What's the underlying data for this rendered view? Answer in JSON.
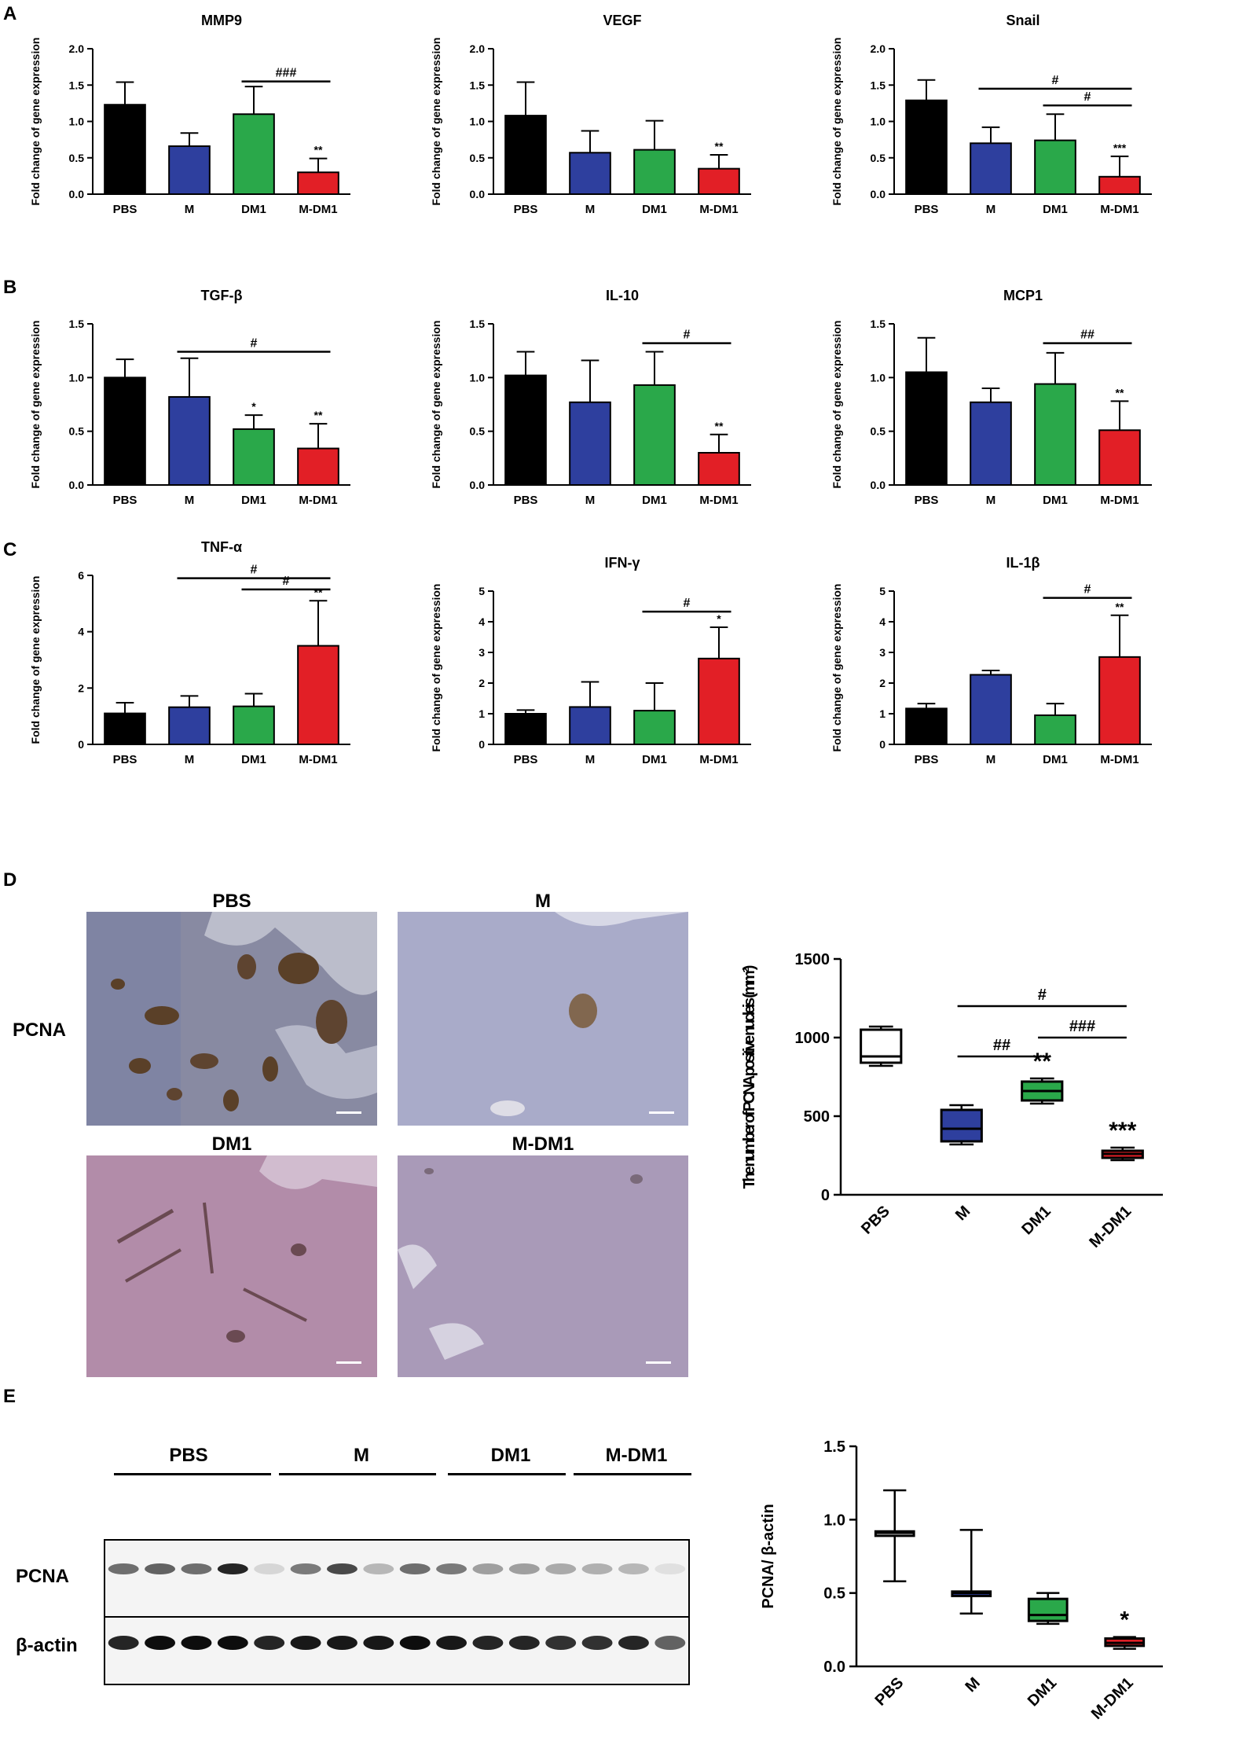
{
  "panels": {
    "A": "A",
    "B": "B",
    "C": "C",
    "D": "D",
    "E": "E"
  },
  "colors": {
    "PBS": "#000000",
    "M": "#2e3f9e",
    "DM1": "#2aa84a",
    "M-DM1": "#e21f26"
  },
  "groups": [
    "PBS",
    "M",
    "DM1",
    "M-DM1"
  ],
  "chart_data": [
    {
      "type": "bar",
      "panel": "A",
      "title": "MMP9",
      "ylabel": "Fold change of gene expression",
      "categories": [
        "PBS",
        "M",
        "DM1",
        "M-DM1"
      ],
      "values": [
        1.23,
        0.66,
        1.1,
        0.3
      ],
      "errors": [
        0.31,
        0.18,
        0.38,
        0.19
      ],
      "ylim": [
        0,
        2.0
      ],
      "yticks": [
        "0.0",
        "0.5",
        "1.0",
        "1.5",
        "2.0"
      ],
      "stars": [
        "",
        "",
        "",
        "**"
      ],
      "brackets": [
        {
          "from": 2,
          "to": 3,
          "label": "###",
          "y": 1.55
        }
      ]
    },
    {
      "type": "bar",
      "panel": "A",
      "title": "VEGF",
      "ylabel": "Fold change of gene expression",
      "categories": [
        "PBS",
        "M",
        "DM1",
        "M-DM1"
      ],
      "values": [
        1.08,
        0.57,
        0.61,
        0.35
      ],
      "errors": [
        0.46,
        0.3,
        0.4,
        0.19
      ],
      "ylim": [
        0,
        2.0
      ],
      "yticks": [
        "0.0",
        "0.5",
        "1.0",
        "1.5",
        "2.0"
      ],
      "stars": [
        "",
        "",
        "",
        "**"
      ],
      "brackets": []
    },
    {
      "type": "bar",
      "panel": "A",
      "title": "Snail",
      "ylabel": "Fold change of gene expression",
      "categories": [
        "PBS",
        "M",
        "DM1",
        "M-DM1"
      ],
      "values": [
        1.29,
        0.7,
        0.74,
        0.24
      ],
      "errors": [
        0.28,
        0.22,
        0.36,
        0.28
      ],
      "ylim": [
        0,
        2.0
      ],
      "yticks": [
        "0.0",
        "0.5",
        "1.0",
        "1.5",
        "2.0"
      ],
      "stars": [
        "",
        "",
        "",
        "***"
      ],
      "brackets": [
        {
          "from": 1,
          "to": 3,
          "label": "#",
          "y": 1.45
        },
        {
          "from": 2,
          "to": 3,
          "label": "#",
          "y": 1.22
        }
      ]
    },
    {
      "type": "bar",
      "panel": "B",
      "title": "TGF-β",
      "ylabel": "Fold change of gene expression",
      "categories": [
        "PBS",
        "M",
        "DM1",
        "M-DM1"
      ],
      "values": [
        1.0,
        0.82,
        0.52,
        0.34
      ],
      "errors": [
        0.17,
        0.36,
        0.13,
        0.23
      ],
      "ylim": [
        0,
        1.5
      ],
      "yticks": [
        "0.0",
        "0.5",
        "1.0",
        "1.5"
      ],
      "stars": [
        "",
        "",
        "*",
        "**"
      ],
      "brackets": [
        {
          "from": 1,
          "to": 3,
          "label": "#",
          "y": 1.24
        }
      ]
    },
    {
      "type": "bar",
      "panel": "B",
      "title": "IL-10",
      "ylabel": "Fold change of gene expression",
      "categories": [
        "PBS",
        "M",
        "DM1",
        "M-DM1"
      ],
      "values": [
        1.02,
        0.77,
        0.93,
        0.3
      ],
      "errors": [
        0.22,
        0.39,
        0.31,
        0.17
      ],
      "ylim": [
        0,
        1.5
      ],
      "yticks": [
        "0.0",
        "0.5",
        "1.0",
        "1.5"
      ],
      "stars": [
        "",
        "",
        "",
        "**"
      ],
      "brackets": [
        {
          "from": 2,
          "to": 3,
          "label": "#",
          "y": 1.32
        }
      ]
    },
    {
      "type": "bar",
      "panel": "B",
      "title": "MCP1",
      "ylabel": "Fold change of gene expression",
      "categories": [
        "PBS",
        "M",
        "DM1",
        "M-DM1"
      ],
      "values": [
        1.05,
        0.77,
        0.94,
        0.51
      ],
      "errors": [
        0.32,
        0.13,
        0.29,
        0.27
      ],
      "ylim": [
        0,
        1.5
      ],
      "yticks": [
        "0.0",
        "0.5",
        "1.0",
        "1.5"
      ],
      "stars": [
        "",
        "",
        "",
        "**"
      ],
      "brackets": [
        {
          "from": 2,
          "to": 3,
          "label": "##",
          "y": 1.32
        }
      ]
    },
    {
      "type": "bar",
      "panel": "C",
      "title": "TNF-α",
      "ylabel": "Fold change of gene expression",
      "categories": [
        "PBS",
        "M",
        "DM1",
        "M-DM1"
      ],
      "values": [
        1.1,
        1.32,
        1.35,
        3.5
      ],
      "errors": [
        0.38,
        0.4,
        0.45,
        1.6
      ],
      "ylim": [
        0,
        6
      ],
      "yticks": [
        "0",
        "2",
        "4",
        "6"
      ],
      "stars": [
        "",
        "",
        "",
        "**"
      ],
      "brackets": [
        {
          "from": 1,
          "to": 3,
          "label": "#",
          "y": 5.9
        },
        {
          "from": 2,
          "to": 3,
          "label": "#",
          "y": 5.5
        }
      ]
    },
    {
      "type": "bar",
      "panel": "C",
      "title": "IFN-γ",
      "ylabel": "Fold change of gene expression",
      "categories": [
        "PBS",
        "M",
        "DM1",
        "M-DM1"
      ],
      "values": [
        1.0,
        1.22,
        1.1,
        2.8
      ],
      "errors": [
        0.12,
        0.82,
        0.9,
        1.02
      ],
      "ylim": [
        0,
        5
      ],
      "yticks": [
        "0",
        "1",
        "2",
        "3",
        "4",
        "5"
      ],
      "stars": [
        "",
        "",
        "",
        "*"
      ],
      "brackets": [
        {
          "from": 2,
          "to": 3,
          "label": "#",
          "y": 4.33
        }
      ]
    },
    {
      "type": "bar",
      "panel": "C",
      "title": "IL-1β",
      "ylabel": "Fold change of gene expression",
      "categories": [
        "PBS",
        "M",
        "DM1",
        "M-DM1"
      ],
      "values": [
        1.17,
        2.27,
        0.95,
        2.85
      ],
      "errors": [
        0.16,
        0.14,
        0.38,
        1.36
      ],
      "ylim": [
        0,
        5
      ],
      "yticks": [
        "0",
        "1",
        "2",
        "3",
        "4",
        "5"
      ],
      "stars": [
        "",
        "",
        "",
        "**"
      ],
      "brackets": [
        {
          "from": 2,
          "to": 3,
          "label": "#",
          "y": 4.78
        }
      ]
    },
    {
      "type": "box",
      "panel": "D",
      "ylabel": "The number of PCNA positive nucleis (mm²)",
      "categories": [
        "PBS",
        "M",
        "DM1",
        "M-DM1"
      ],
      "boxes": [
        {
          "min": 820,
          "q1": 840,
          "median": 880,
          "q3": 1050,
          "max": 1070
        },
        {
          "min": 320,
          "q1": 340,
          "median": 420,
          "q3": 540,
          "max": 570
        },
        {
          "min": 580,
          "q1": 600,
          "median": 660,
          "q3": 720,
          "max": 740
        },
        {
          "min": 220,
          "q1": 235,
          "median": 260,
          "q3": 280,
          "max": 300
        }
      ],
      "ylim": [
        0,
        1500
      ],
      "yticks": [
        "0",
        "500",
        "1000",
        "1500"
      ],
      "stars": [
        "",
        "",
        "**",
        "***"
      ],
      "brackets": [
        {
          "from": 1,
          "to": 3,
          "label": "#",
          "y": 1200
        },
        {
          "from": 1,
          "to": 2,
          "label": "##",
          "y": 880
        },
        {
          "from": 2,
          "to": 3,
          "label": "###",
          "y": 1000
        }
      ]
    },
    {
      "type": "box",
      "panel": "E",
      "ylabel": "PCNA/ β-actin",
      "categories": [
        "PBS",
        "M",
        "DM1",
        "M-DM1"
      ],
      "boxes": [
        {
          "min": 0.58,
          "q1": 0.89,
          "median": 0.91,
          "q3": 0.92,
          "max": 1.2
        },
        {
          "min": 0.36,
          "q1": 0.48,
          "median": 0.5,
          "q3": 0.51,
          "max": 0.93
        },
        {
          "min": 0.29,
          "q1": 0.31,
          "median": 0.35,
          "q3": 0.46,
          "max": 0.5
        },
        {
          "min": 0.12,
          "q1": 0.14,
          "median": 0.16,
          "q3": 0.19,
          "max": 0.2
        }
      ],
      "ylim": [
        0,
        1.5
      ],
      "yticks": [
        "0.0",
        "0.5",
        "1.0",
        "1.5"
      ],
      "stars": [
        "",
        "",
        "",
        "*"
      ],
      "brackets": []
    }
  ],
  "micrographs": {
    "row_label": "PCNA",
    "titles": [
      "PBS",
      "M",
      "DM1",
      "M-DM1"
    ]
  },
  "blot": {
    "groups": [
      "PBS",
      "M",
      "DM1",
      "M-DM1"
    ],
    "rows": [
      "PCNA",
      "β-actin"
    ]
  }
}
